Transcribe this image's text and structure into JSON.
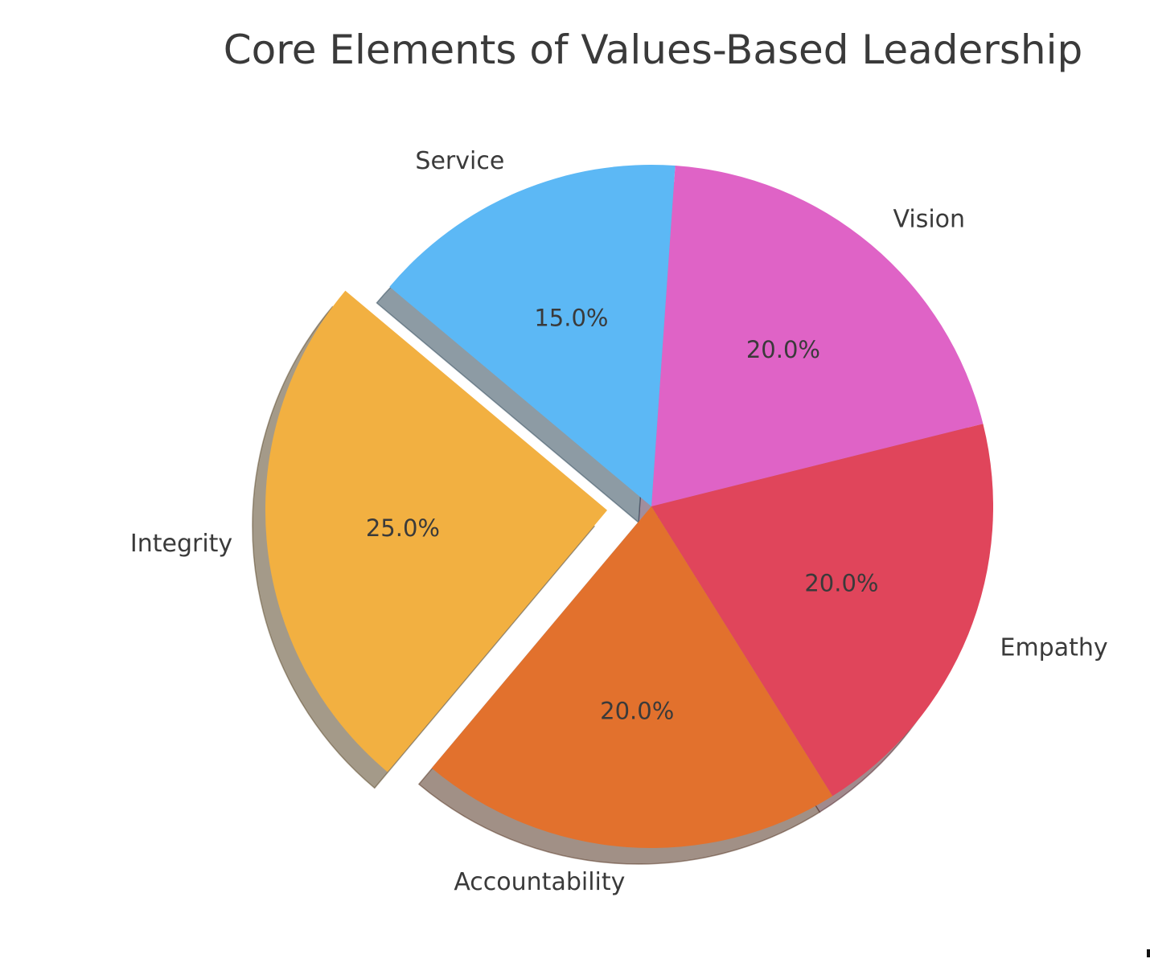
{
  "chart_data": {
    "type": "pie",
    "title": "Core Elements of Values-Based Leadership",
    "categories": [
      "Vision",
      "Empathy",
      "Accountability",
      "Integrity",
      "Service"
    ],
    "values": [
      20,
      20,
      20,
      25,
      15
    ],
    "percent_labels": [
      "20.0%",
      "20.0%",
      "20.0%",
      "25.0%",
      "15.0%"
    ],
    "colors": [
      "#df63c6",
      "#e0455b",
      "#e2712d",
      "#f2b041",
      "#5cb8f5"
    ],
    "explode": [
      0,
      0,
      0,
      0.13,
      0
    ],
    "start_angle": 86,
    "clockwise": true,
    "label_distance": 1.1,
    "pct_distance": 0.6,
    "shadow": true,
    "legend_position": "none",
    "background_color": "#ffffff",
    "text_color": "#3a3a3a"
  }
}
